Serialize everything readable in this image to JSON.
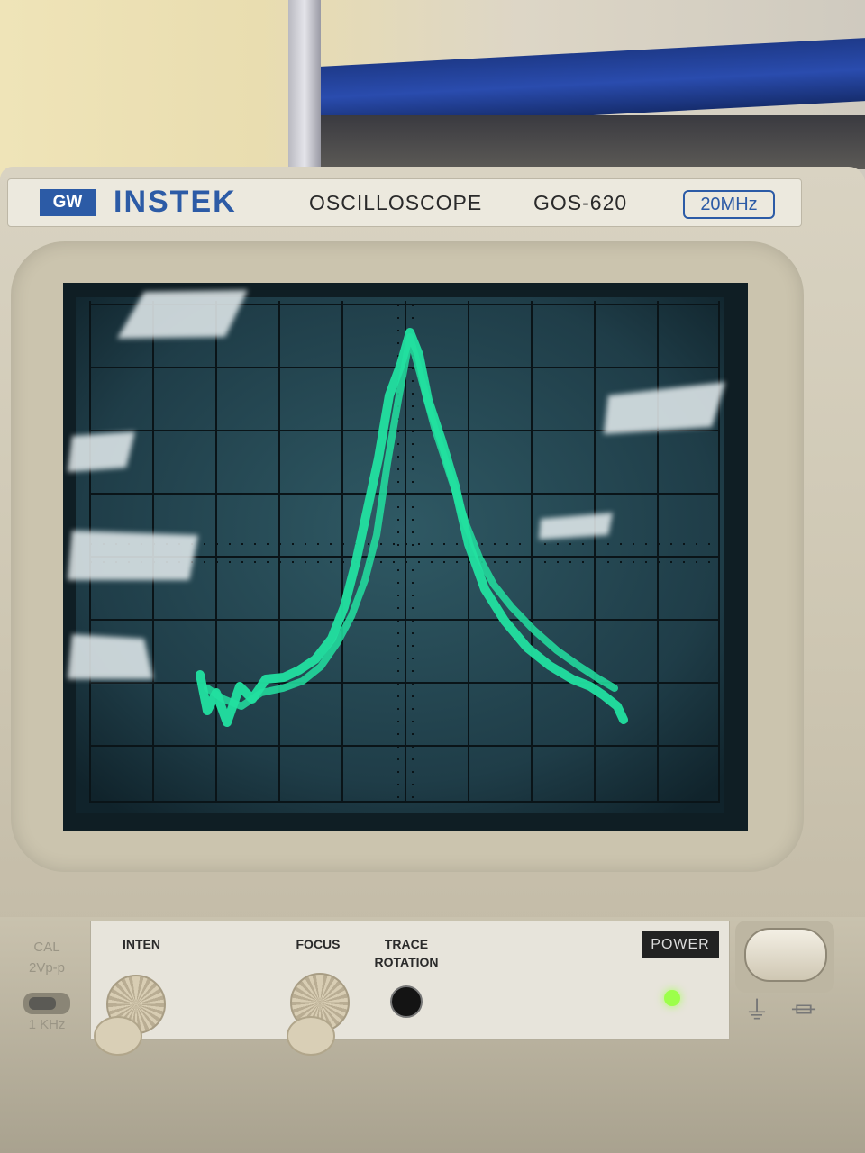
{
  "nameplate": {
    "logo": "GW",
    "brand": "INSTEK",
    "device_type": "OSCILLOSCOPE",
    "model": "GOS-620",
    "bandwidth": "20MHz"
  },
  "controls": {
    "cal_label_1": "CAL",
    "cal_label_2": "2Vp-p",
    "cal_label_3": "1 KHz",
    "inten_label": "INTEN",
    "focus_label": "FOCUS",
    "trace_rotation_label_1": "TRACE",
    "trace_rotation_label_2": "ROTATION",
    "power_label": "POWER"
  },
  "colors": {
    "trace": "#22e0a0",
    "screen": "#0f1e24",
    "graticule": "#071015",
    "brand_blue": "#2c5ba6",
    "led": "#9cff4a"
  },
  "icons": {
    "power_led": "led-icon",
    "ground": "ground-icon"
  }
}
